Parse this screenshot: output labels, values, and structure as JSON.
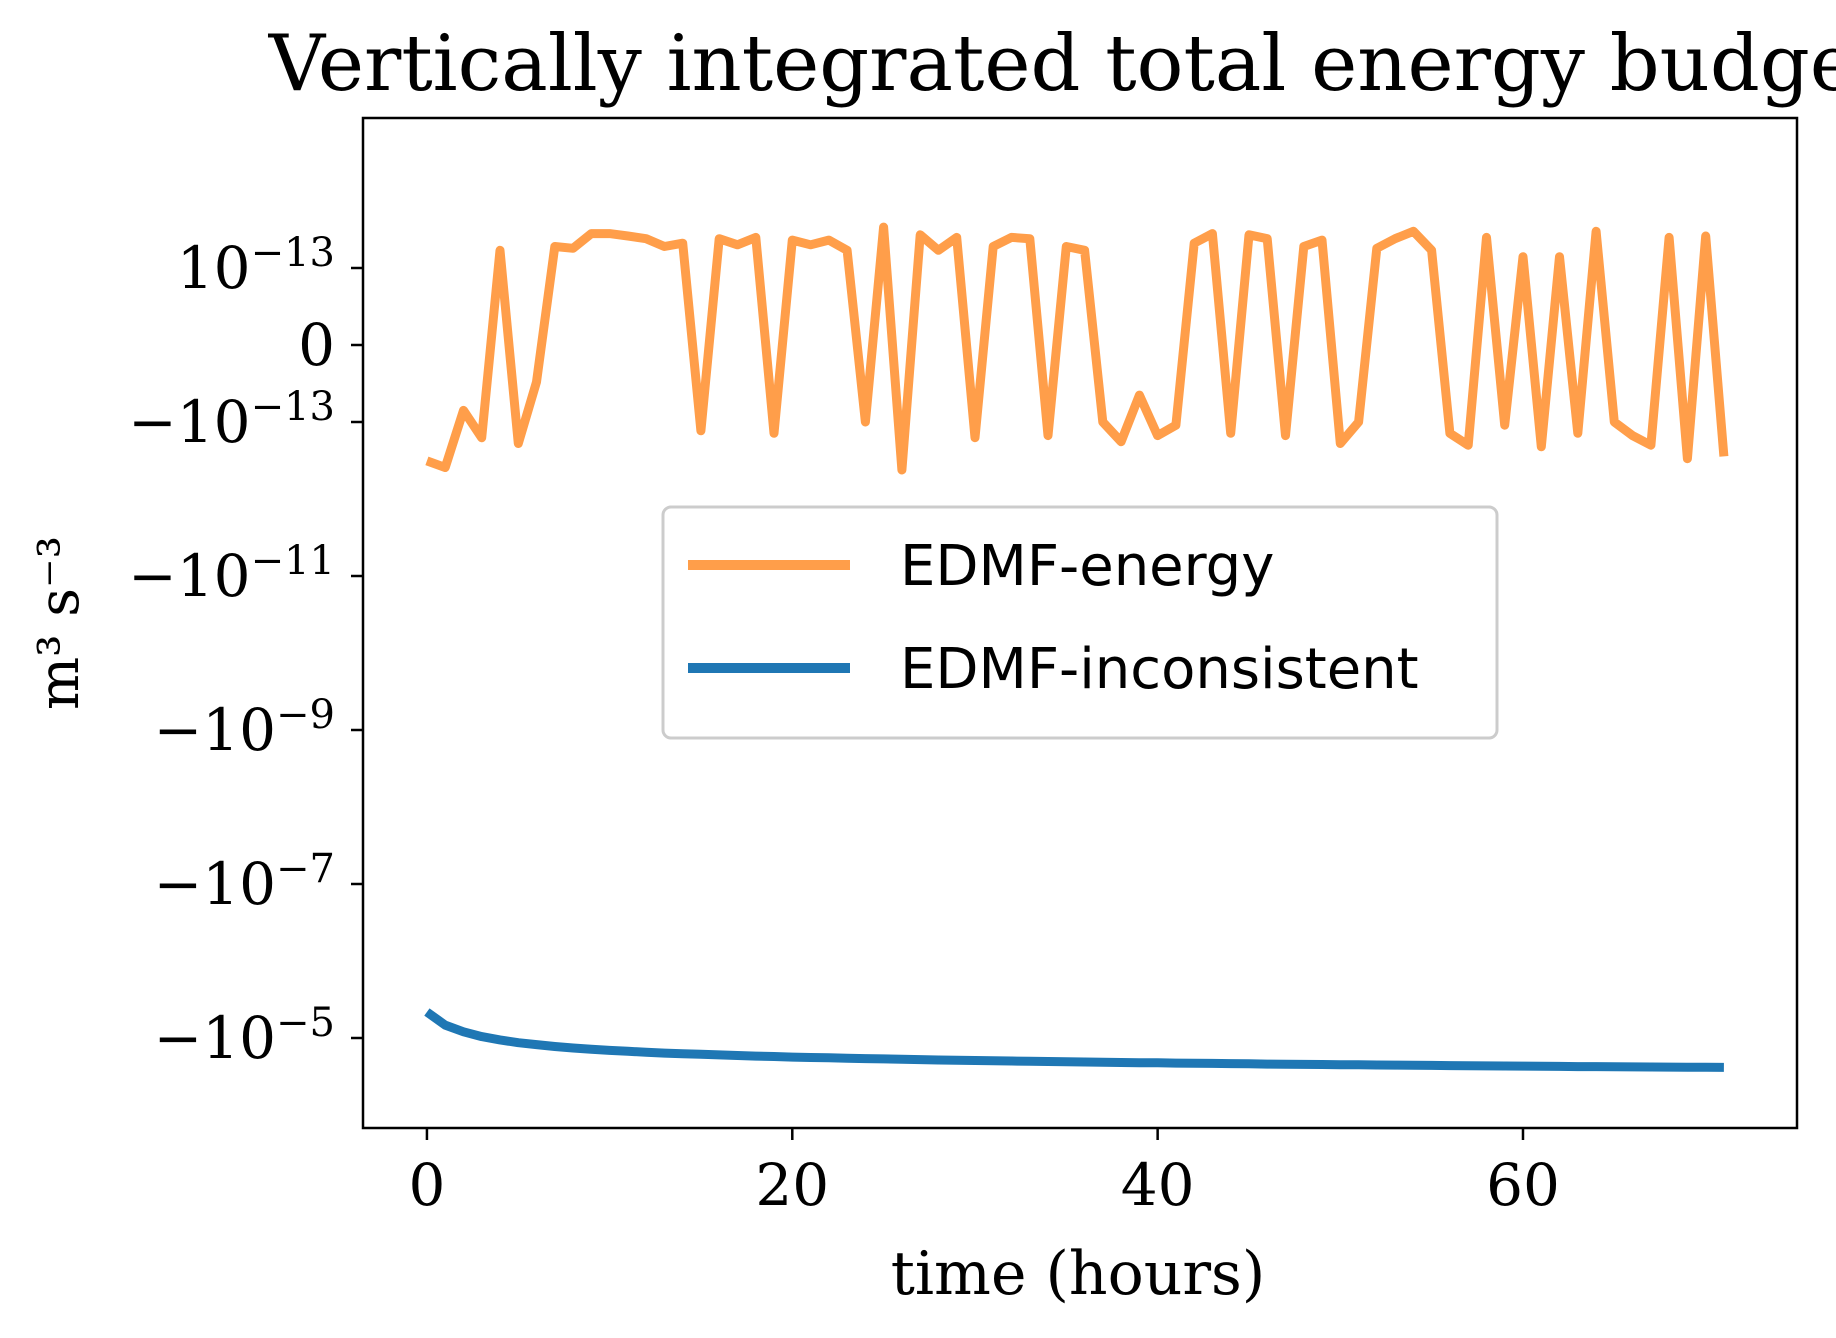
{
  "chart_data": {
    "type": "line",
    "title": "Vertically integrated total energy budget",
    "xlabel": "time (hours)",
    "ylabel": "m³ s⁻³",
    "yscale": "symlog",
    "xlim": [
      -3.5,
      75
    ],
    "xticks": [
      {
        "value": 0,
        "label": "0"
      },
      {
        "value": 20,
        "label": "20"
      },
      {
        "value": 40,
        "label": "40"
      },
      {
        "value": 60,
        "label": "60"
      }
    ],
    "yticks": [
      {
        "value": 1e-13,
        "base": "10",
        "exp": "−13"
      },
      {
        "value": 0,
        "base": "0",
        "exp": ""
      },
      {
        "value": -1e-13,
        "base": "−10",
        "exp": "−13"
      },
      {
        "value": -1e-11,
        "base": "−10",
        "exp": "−11"
      },
      {
        "value": -1e-09,
        "base": "−10",
        "exp": "−9"
      },
      {
        "value": -1e-07,
        "base": "−10",
        "exp": "−7"
      },
      {
        "value": -1e-05,
        "base": "−10",
        "exp": "−5"
      }
    ],
    "grid": false,
    "legend_position": "center",
    "series": [
      {
        "name": "EDMF-energy",
        "color": "#ff9e4a",
        "x": [
          0,
          1,
          2,
          3,
          4,
          5,
          6,
          7,
          8,
          9,
          10,
          11,
          12,
          13,
          14,
          15,
          16,
          17,
          18,
          19,
          20,
          21,
          22,
          23,
          24,
          25,
          26,
          27,
          28,
          29,
          30,
          31,
          32,
          33,
          34,
          35,
          36,
          37,
          38,
          39,
          40,
          41,
          42,
          43,
          44,
          45,
          46,
          47,
          48,
          49,
          50,
          51,
          52,
          53,
          54,
          55,
          56,
          57,
          58,
          59,
          60,
          61,
          62,
          63,
          64,
          65,
          66,
          67,
          68,
          69,
          70,
          71
        ],
        "y": [
          -3.2e-13,
          -3.9e-13,
          -8.5e-14,
          -1.6e-13,
          1.7e-13,
          -1.9e-13,
          -4.8e-14,
          1.9e-13,
          1.8e-13,
          2.8e-13,
          2.8e-13,
          2.6e-13,
          2.4e-13,
          1.9e-13,
          2.1e-13,
          -1.3e-13,
          2.4e-13,
          2e-13,
          2.5e-13,
          -1.4e-13,
          2.3e-13,
          2e-13,
          2.3e-13,
          1.7e-13,
          -1e-13,
          3.4e-13,
          -4.2e-13,
          2.7e-13,
          1.7e-13,
          2.5e-13,
          -1.6e-13,
          1.9e-13,
          2.5e-13,
          2.4e-13,
          -1.5e-13,
          1.9e-13,
          1.7e-13,
          -1e-13,
          -1.8e-13,
          -6.5e-14,
          -1.5e-13,
          -1.1e-13,
          2.1e-13,
          2.8e-13,
          -1.4e-13,
          2.7e-13,
          2.4e-13,
          -1.5e-13,
          1.9e-13,
          2.3e-13,
          -1.9e-13,
          -1e-13,
          1.8e-13,
          2.4e-13,
          3e-13,
          1.7e-13,
          -1.4e-13,
          -2e-13,
          2.5e-13,
          -1.1e-13,
          1.4e-13,
          -2.1e-13,
          1.4e-13,
          -1.4e-13,
          3e-13,
          -1e-13,
          -1.5e-13,
          -2e-13,
          2.5e-13,
          -3e-13,
          2.6e-13,
          -2.8e-13
        ]
      },
      {
        "name": "EDMF-inconsistent",
        "color": "#1f77b4",
        "x": [
          0,
          1,
          2,
          3,
          4,
          5,
          6,
          7,
          8,
          9,
          10,
          11,
          12,
          13,
          14,
          15,
          16,
          17,
          18,
          19,
          20,
          21,
          22,
          23,
          24,
          25,
          26,
          27,
          28,
          29,
          30,
          31,
          32,
          33,
          34,
          35,
          36,
          37,
          38,
          39,
          40,
          41,
          42,
          43,
          44,
          45,
          46,
          47,
          48,
          49,
          50,
          51,
          52,
          53,
          54,
          55,
          56,
          57,
          58,
          59,
          60,
          61,
          62,
          63,
          64,
          65,
          66,
          67,
          68,
          69,
          70,
          71
        ],
        "y": [
          -4.6e-06,
          -6.8e-06,
          -8.3e-06,
          -9.6e-06,
          -1.06e-05,
          -1.15e-05,
          -1.22e-05,
          -1.29e-05,
          -1.35e-05,
          -1.4e-05,
          -1.45e-05,
          -1.49e-05,
          -1.53e-05,
          -1.57e-05,
          -1.6e-05,
          -1.63e-05,
          -1.66e-05,
          -1.69e-05,
          -1.72e-05,
          -1.74e-05,
          -1.77e-05,
          -1.79e-05,
          -1.81e-05,
          -1.83e-05,
          -1.85e-05,
          -1.87e-05,
          -1.89e-05,
          -1.91e-05,
          -1.93e-05,
          -1.94e-05,
          -1.96e-05,
          -1.98e-05,
          -1.99e-05,
          -2.01e-05,
          -2.02e-05,
          -2.04e-05,
          -2.05e-05,
          -2.06e-05,
          -2.08e-05,
          -2.09e-05,
          -2.1e-05,
          -2.12e-05,
          -2.13e-05,
          -2.14e-05,
          -2.15e-05,
          -2.16e-05,
          -2.18e-05,
          -2.19e-05,
          -2.2e-05,
          -2.21e-05,
          -2.22e-05,
          -2.23e-05,
          -2.24e-05,
          -2.25e-05,
          -2.26e-05,
          -2.27e-05,
          -2.28e-05,
          -2.29e-05,
          -2.3e-05,
          -2.31e-05,
          -2.32e-05,
          -2.33e-05,
          -2.34e-05,
          -2.35e-05,
          -2.35e-05,
          -2.36e-05,
          -2.37e-05,
          -2.38e-05,
          -2.39e-05,
          -2.4e-05,
          -2.4e-05,
          -2.41e-05
        ]
      }
    ]
  }
}
